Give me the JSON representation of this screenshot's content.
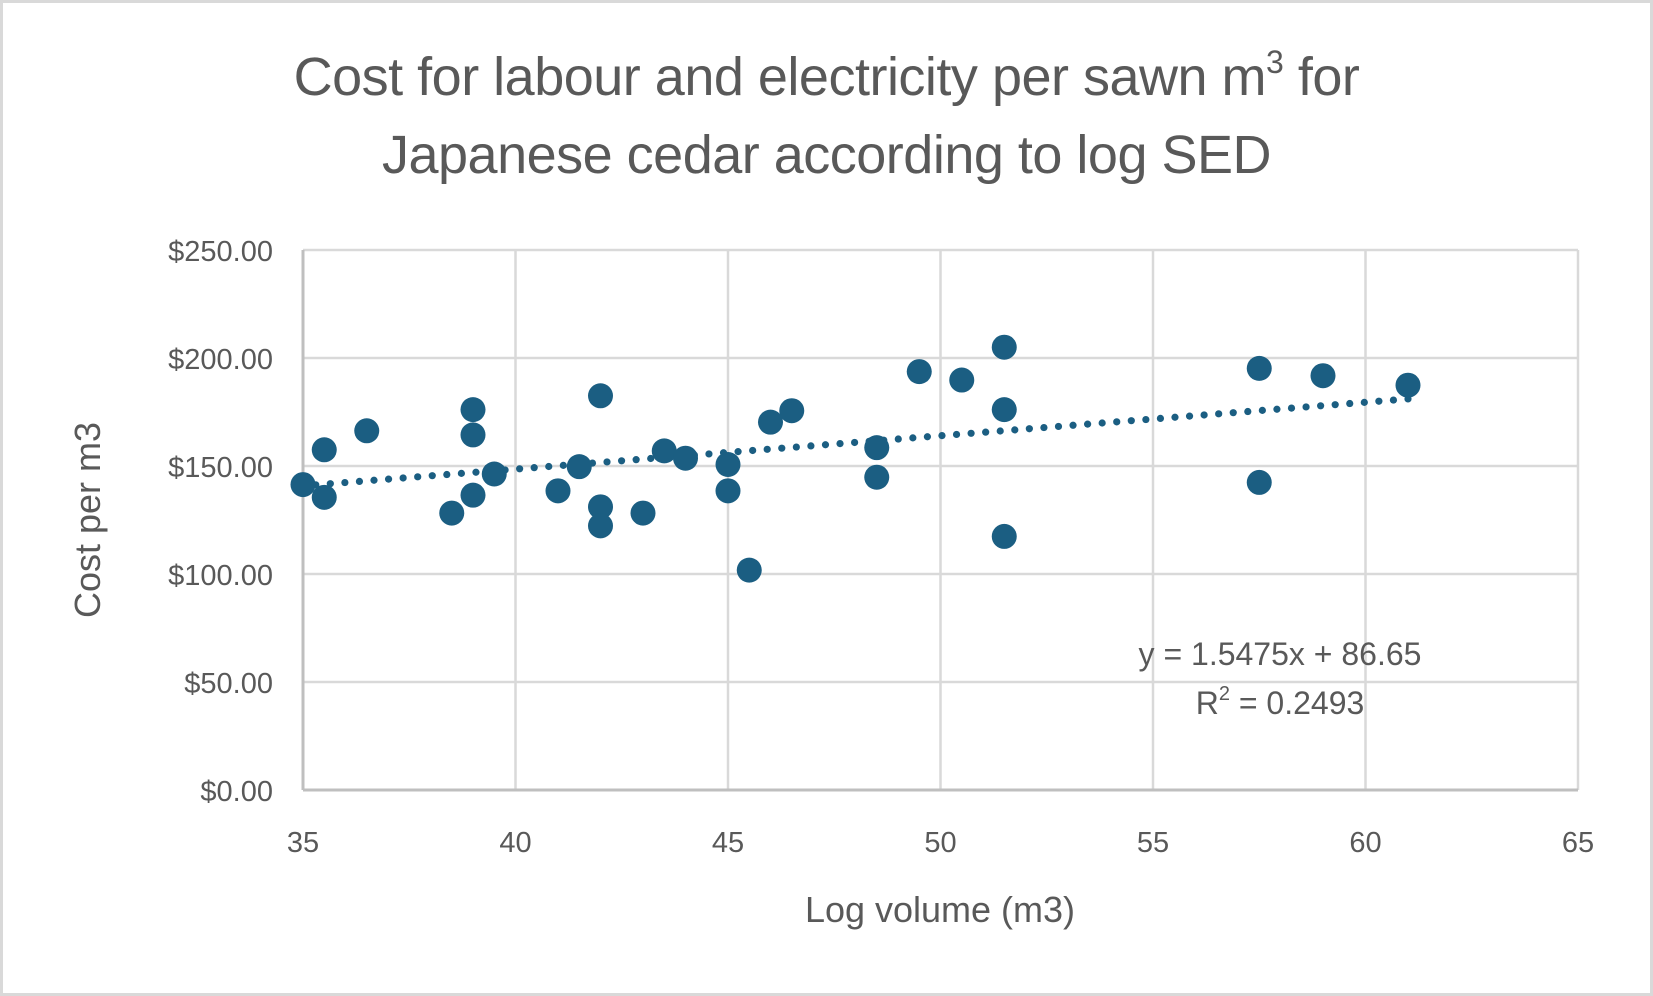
{
  "chart_data": {
    "type": "scatter",
    "title_main": "Cost for labour and electricity per sawn m",
    "title_sup": "3",
    "title_tail": " for",
    "title_line2": "Japanese cedar according to log SED",
    "xlabel": "Log volume (m3)",
    "ylabel": "Cost per m3",
    "xlim": [
      35,
      65
    ],
    "ylim": [
      0,
      250
    ],
    "x_ticks": [
      35,
      40,
      45,
      50,
      55,
      60,
      65
    ],
    "x_tick_labels": [
      "35",
      "40",
      "45",
      "50",
      "55",
      "60",
      "65"
    ],
    "y_ticks": [
      0,
      50,
      100,
      150,
      200,
      250
    ],
    "y_tick_labels": [
      "$0.00",
      "$50.00",
      "$100.00",
      "$150.00",
      "$200.00",
      "$250.00"
    ],
    "grid": true,
    "marker_color": "#1b5e82",
    "series": [
      {
        "name": "Cost per m3",
        "points": [
          {
            "x": 35,
            "y": 141.4
          },
          {
            "x": 35.5,
            "y": 157.5
          },
          {
            "x": 35.5,
            "y": 135.5
          },
          {
            "x": 36.5,
            "y": 166.3
          },
          {
            "x": 38.5,
            "y": 128.2
          },
          {
            "x": 39,
            "y": 176.1
          },
          {
            "x": 39,
            "y": 164.4
          },
          {
            "x": 39,
            "y": 136.5
          },
          {
            "x": 39.5,
            "y": 146.3
          },
          {
            "x": 41,
            "y": 138.5
          },
          {
            "x": 41.5,
            "y": 149.7
          },
          {
            "x": 42,
            "y": 182.5
          },
          {
            "x": 42,
            "y": 131.1
          },
          {
            "x": 42,
            "y": 122.3
          },
          {
            "x": 43,
            "y": 128.2
          },
          {
            "x": 43.5,
            "y": 157.0
          },
          {
            "x": 44,
            "y": 153.6
          },
          {
            "x": 45,
            "y": 150.7
          },
          {
            "x": 45,
            "y": 138.5
          },
          {
            "x": 45.5,
            "y": 101.8
          },
          {
            "x": 46,
            "y": 170.3
          },
          {
            "x": 46.5,
            "y": 175.6
          },
          {
            "x": 48.5,
            "y": 158.5
          },
          {
            "x": 48.5,
            "y": 144.8
          },
          {
            "x": 49.5,
            "y": 193.7
          },
          {
            "x": 50.5,
            "y": 189.8
          },
          {
            "x": 51.5,
            "y": 205.0
          },
          {
            "x": 51.5,
            "y": 176.1
          },
          {
            "x": 51.5,
            "y": 117.4
          },
          {
            "x": 57.5,
            "y": 195.2
          },
          {
            "x": 57.5,
            "y": 142.4
          },
          {
            "x": 59,
            "y": 191.8
          },
          {
            "x": 61,
            "y": 187.4
          }
        ]
      }
    ],
    "trendline": {
      "type": "linear",
      "slope": 1.5475,
      "intercept": 86.65,
      "x_range": [
        35.3,
        61
      ],
      "style": "dotted",
      "equation_label": "y = 1.5475x + 86.65",
      "r2_prefix": "R",
      "r2_sup": "2",
      "r2_value": " = 0.2493"
    }
  }
}
